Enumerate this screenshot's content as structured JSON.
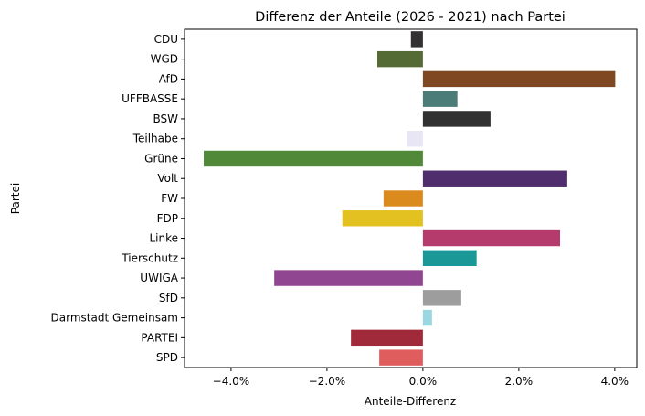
{
  "chart_data": {
    "type": "bar",
    "orientation": "horizontal",
    "title": "Differenz der Anteile (2026 - 2021) nach Partei",
    "xlabel": "Anteile-Differenz",
    "ylabel": "Partei",
    "xlim": [
      -4.97,
      4.46
    ],
    "xticks": [
      -4,
      -2,
      0,
      2,
      4
    ],
    "xtick_labels": [
      "−4.0%",
      "−2.0%",
      "0.0%",
      "2.0%",
      "4.0%"
    ],
    "grid": false,
    "categories": [
      "CDU",
      "WGD",
      "AfD",
      "UFFBASSE",
      "BSW",
      "Teilhabe",
      "Grüne",
      "Volt",
      "FW",
      "FDP",
      "Linke",
      "Tierschutz",
      "UWIGA",
      "SfD",
      "Darmstadt Gemeinsam",
      "PARTEI",
      "SPD"
    ],
    "values": [
      -0.25,
      -0.95,
      4.01,
      0.72,
      1.41,
      -0.33,
      -4.57,
      3.01,
      -0.82,
      -1.68,
      2.86,
      1.12,
      -3.1,
      0.8,
      0.19,
      -1.5,
      -0.91
    ],
    "colors": [
      "#333132",
      "#556b35",
      "#7f4823",
      "#4c7c78",
      "#323132",
      "#e8e6f5",
      "#508a38",
      "#502d6c",
      "#db8b1e",
      "#e2c120",
      "#b43b6c",
      "#1a9797",
      "#914691",
      "#9d9d9d",
      "#99d8e2",
      "#a0293a",
      "#e05d5e"
    ]
  }
}
